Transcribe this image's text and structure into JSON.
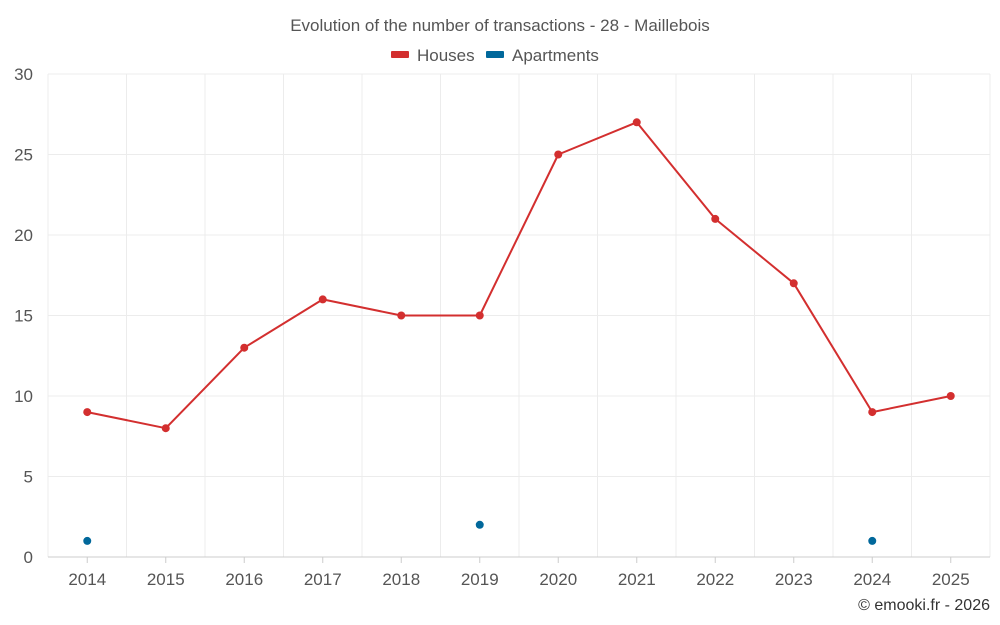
{
  "chart_data": {
    "type": "line",
    "title": "Evolution of the number of transactions - 28 - Maillebois",
    "categories": [
      "2014",
      "2015",
      "2016",
      "2017",
      "2018",
      "2019",
      "2020",
      "2021",
      "2022",
      "2023",
      "2024",
      "2025"
    ],
    "ylim": [
      0,
      30
    ],
    "yticks": [
      0,
      5,
      10,
      15,
      20,
      25,
      30
    ],
    "grid": true,
    "legend_position": "top-center",
    "series": [
      {
        "name": "Houses",
        "color": "#d32f2f",
        "values": [
          9,
          8,
          13,
          16,
          15,
          15,
          25,
          27,
          21,
          17,
          9,
          10
        ],
        "line": true
      },
      {
        "name": "Apartments",
        "color": "#01689b",
        "values": [
          1,
          null,
          null,
          null,
          null,
          2,
          null,
          null,
          null,
          null,
          1,
          null
        ],
        "line": false
      }
    ],
    "credit": "© emooki.fr - 2026"
  }
}
